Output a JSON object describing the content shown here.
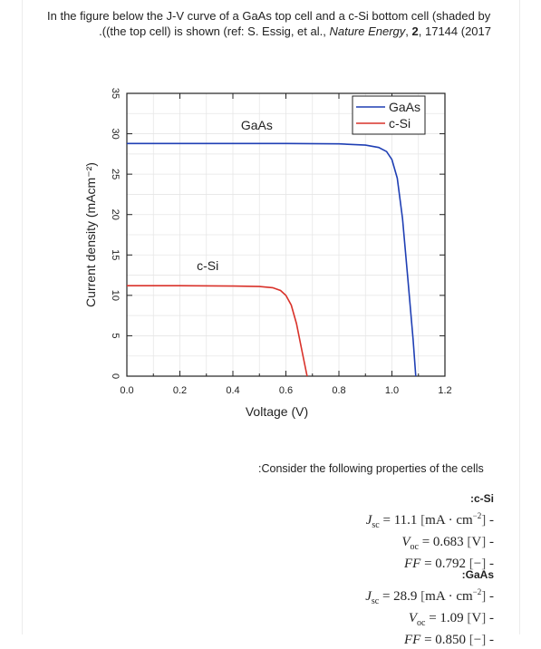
{
  "intro": {
    "line1": "In the figure below the J-V curve of a GaAs top cell and a c-Si bottom cell (shaded by",
    "line2_prefix": ".((the top cell) is shown (ref: S. Essig, et al., ",
    "journal": "Nature Energy",
    "line2_sep": ", ",
    "volume": "2",
    "line2_suffix": ", 17144 (2017"
  },
  "chart_data": {
    "type": "line",
    "xlabel": "Voltage (V)",
    "ylabel": "Current density (mAcm⁻²)",
    "xlim": [
      0.0,
      1.2
    ],
    "ylim": [
      0,
      35
    ],
    "xticks": [
      "0.0",
      "0.2",
      "0.4",
      "0.6",
      "0.8",
      "1.0",
      "1.2"
    ],
    "yticks": [
      "0",
      "5",
      "10",
      "15",
      "20",
      "25",
      "30",
      "35"
    ],
    "grid": true,
    "legend": "top-right",
    "annotations": [
      {
        "text": "GaAs",
        "x": 0.49,
        "y": 30.5
      },
      {
        "text": "c-Si",
        "x": 0.305,
        "y": 13.1
      }
    ],
    "series": [
      {
        "name": "GaAs",
        "color": "#1f3fb4",
        "x": [
          0.0,
          0.2,
          0.4,
          0.6,
          0.8,
          0.9,
          0.95,
          0.98,
          1.0,
          1.02,
          1.04,
          1.06,
          1.08,
          1.09
        ],
        "y": [
          28.8,
          28.8,
          28.8,
          28.8,
          28.75,
          28.6,
          28.3,
          27.8,
          26.8,
          24.5,
          19.5,
          12.0,
          4.5,
          0.0
        ]
      },
      {
        "name": "c-Si",
        "color": "#d9322a",
        "x": [
          0.0,
          0.2,
          0.4,
          0.5,
          0.55,
          0.58,
          0.6,
          0.62,
          0.64,
          0.66,
          0.68
        ],
        "y": [
          11.2,
          11.2,
          11.15,
          11.1,
          10.95,
          10.6,
          10.0,
          8.8,
          6.5,
          3.2,
          0.0
        ]
      }
    ]
  },
  "properties": {
    "heading": ":Consider the following properties of the cells",
    "cells": [
      {
        "name": ":c-Si",
        "jsc": "11.1",
        "jsc_unit": "mA · cm",
        "voc": "0.683",
        "voc_unit": "V",
        "ff": "0.792",
        "ff_unit": "−"
      },
      {
        "name": ":GaAs",
        "jsc": "28.9",
        "jsc_unit": "mA · cm",
        "voc": "1.09",
        "voc_unit": "V",
        "ff": "0.850",
        "ff_unit": "−"
      }
    ]
  }
}
